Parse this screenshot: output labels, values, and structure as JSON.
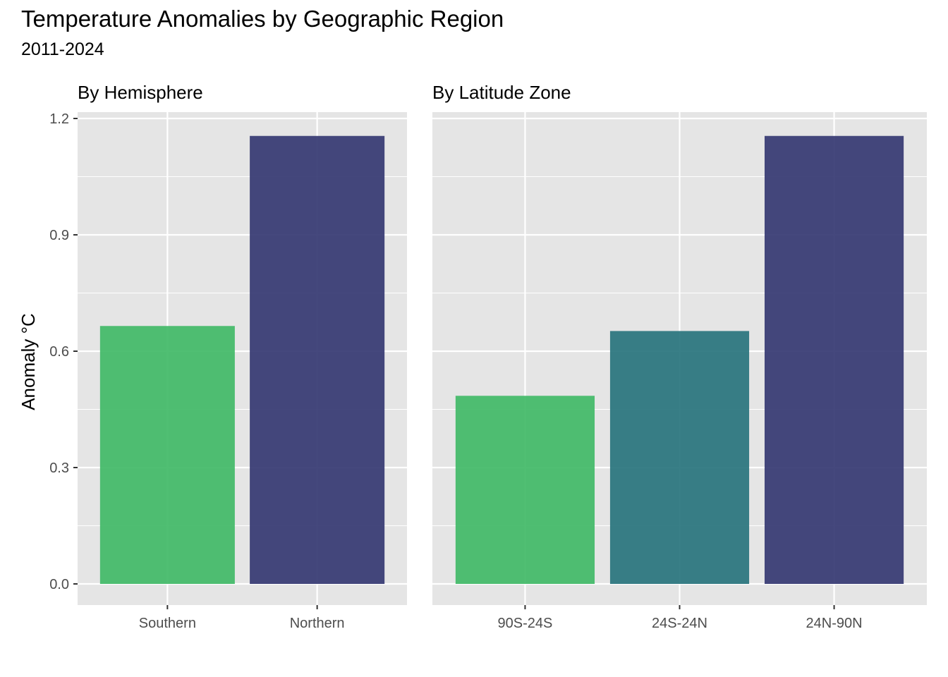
{
  "title": "Temperature Anomalies by Geographic Region",
  "subtitle": "2011-2024",
  "ylabel": "Anomaly °C",
  "chart_data": [
    {
      "type": "bar",
      "panel_title": "By Hemisphere",
      "categories": [
        "Southern",
        "Northern"
      ],
      "values": [
        0.665,
        1.155
      ],
      "colors": [
        "#3DB864",
        "#31346F"
      ],
      "ylim": [
        0,
        1.2
      ],
      "yticks": [
        "0.0",
        "0.3",
        "0.6",
        "0.9",
        "1.2"
      ],
      "ylabel": "Anomaly °C",
      "grid": true
    },
    {
      "type": "bar",
      "panel_title": "By Latitude Zone",
      "categories": [
        "90S-24S",
        "24S-24N",
        "24N-90N"
      ],
      "values": [
        0.485,
        0.652,
        1.155
      ],
      "colors": [
        "#3DB864",
        "#24717A",
        "#31346F"
      ],
      "ylim": [
        0,
        1.2
      ],
      "grid": true
    }
  ]
}
